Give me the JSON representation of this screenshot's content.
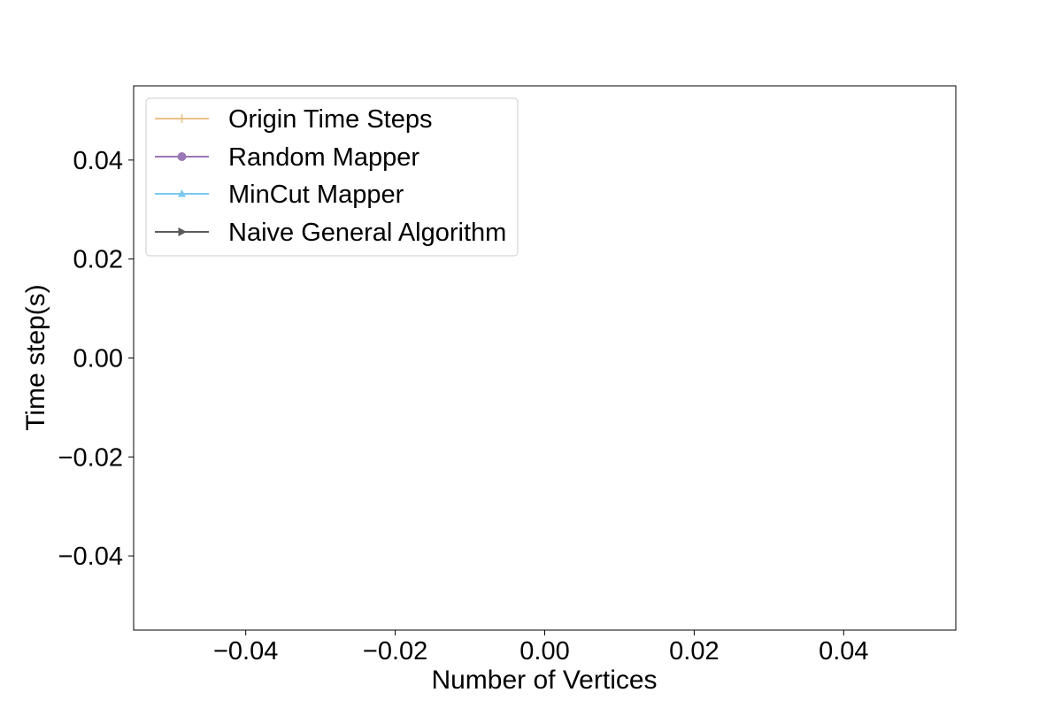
{
  "chart_data": {
    "type": "line",
    "title": "",
    "xlabel": "Number of Vertices",
    "ylabel": "Time step(s)",
    "xlim": [
      -0.055,
      0.055
    ],
    "ylim": [
      -0.055,
      0.055
    ],
    "x_ticks": [
      -0.04,
      -0.02,
      0.0,
      0.02,
      0.04
    ],
    "x_tick_labels": [
      "−0.04",
      "−0.02",
      "0.00",
      "0.02",
      "0.04"
    ],
    "y_ticks": [
      0.04,
      0.02,
      0.0,
      -0.02,
      -0.04
    ],
    "y_tick_labels": [
      "0.04",
      "0.02",
      "0.00",
      "−0.02",
      "−0.04"
    ],
    "grid": false,
    "legend_position": "upper-left",
    "x": [],
    "series": [
      {
        "name": "Origin Time Steps",
        "values": [],
        "color": "#e8c38a",
        "marker": "plus"
      },
      {
        "name": "Random Mapper",
        "values": [],
        "color": "#9b77b5",
        "marker": "circle"
      },
      {
        "name": "MinCut Mapper",
        "values": [],
        "color": "#7cc8ef",
        "marker": "triangle-up"
      },
      {
        "name": "Naive General Algorithm",
        "values": [],
        "color": "#5a5a5a",
        "marker": "triangle-right"
      }
    ]
  }
}
